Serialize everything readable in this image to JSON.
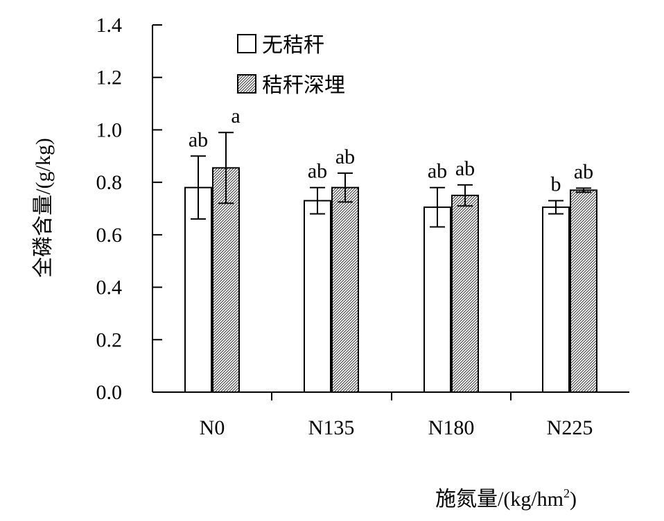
{
  "chart_data": {
    "type": "bar",
    "categories": [
      "N0",
      "N135",
      "N180",
      "N225"
    ],
    "series": [
      {
        "name": "无秸秆",
        "values": [
          0.78,
          0.73,
          0.705,
          0.705
        ],
        "errors": [
          0.12,
          0.05,
          0.075,
          0.025
        ],
        "letters": [
          "ab",
          "ab",
          "ab",
          "b"
        ],
        "pattern": "none"
      },
      {
        "name": "秸秆深埋",
        "values": [
          0.855,
          0.78,
          0.75,
          0.77
        ],
        "errors": [
          0.135,
          0.055,
          0.04,
          0.008
        ],
        "letters": [
          "a",
          "ab",
          "ab",
          "ab"
        ],
        "pattern": "hatch"
      }
    ],
    "ylabel": "全磷含量/(g/kg)",
    "xlabel": "施氮量/(kg/hm",
    "xlabel_sup": "2",
    "xlabel_end": ")",
    "ylim": [
      0,
      1.4
    ],
    "yticks": [
      "0.0",
      "0.2",
      "0.4",
      "0.6",
      "0.8",
      "1.0",
      "1.2",
      "1.4"
    ],
    "grid": false,
    "legend": "top-left"
  }
}
